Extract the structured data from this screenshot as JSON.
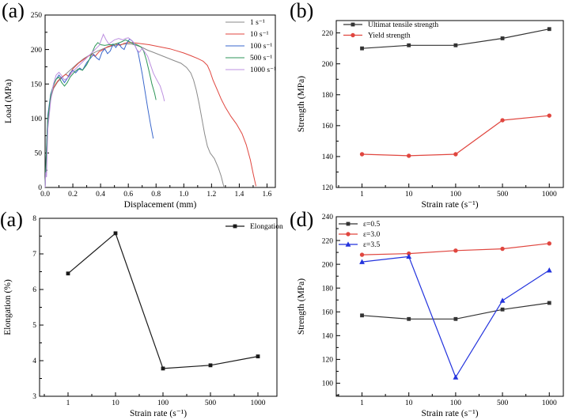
{
  "figure_background": "#ffffff",
  "panels": [
    {
      "label": "(a)"
    },
    {
      "label": "(b)"
    },
    {
      "label": "(a)"
    },
    {
      "label": "(d)"
    }
  ],
  "chart_data": [
    {
      "type": "line",
      "title": "",
      "xlabel": "Displacement  (mm)",
      "ylabel": "Load (MPa)",
      "xlim": [
        0,
        1.66
      ],
      "ylim": [
        0,
        250
      ],
      "xticks": [
        0.0,
        0.2,
        0.4,
        0.6,
        0.8,
        1.0,
        1.2,
        1.4,
        1.6
      ],
      "xticklabels": [
        "0.0",
        "0.2",
        "0.4",
        "0.6",
        "0.8",
        "1.0",
        "1.2",
        "1.4",
        "1.6"
      ],
      "yticks": [
        0,
        50,
        100,
        150,
        200,
        250
      ],
      "yticklabels": [
        "0",
        "50",
        "100",
        "150",
        "200",
        "250"
      ],
      "grid": false,
      "legend": {
        "pos": "tr",
        "ox": 63,
        "oy": 9,
        "dy": 15
      },
      "size": [
        364,
        266
      ],
      "margins": [
        57,
        19,
        16,
        29
      ],
      "ylx": 14,
      "lw": 1.0,
      "series": [
        {
          "name": "1 s⁻¹",
          "color": "#8a8a8a",
          "marker": null,
          "points": [
            [
              0,
              0
            ],
            [
              0.01,
              50
            ],
            [
              0.02,
              95
            ],
            [
              0.04,
              128
            ],
            [
              0.06,
              143
            ],
            [
              0.09,
              153
            ],
            [
              0.13,
              161
            ],
            [
              0.18,
              170
            ],
            [
              0.23,
              179
            ],
            [
              0.28,
              187
            ],
            [
              0.33,
              193
            ],
            [
              0.38,
              198
            ],
            [
              0.43,
              202
            ],
            [
              0.48,
              205
            ],
            [
              0.53,
              207
            ],
            [
              0.58,
              208
            ],
            [
              0.62,
              208
            ],
            [
              0.66,
              206
            ],
            [
              0.7,
              203
            ],
            [
              0.74,
              199
            ],
            [
              0.78,
              196
            ],
            [
              0.83,
              192
            ],
            [
              0.88,
              188
            ],
            [
              0.93,
              184
            ],
            [
              0.98,
              180
            ],
            [
              1.02,
              174
            ],
            [
              1.05,
              166
            ],
            [
              1.07,
              156
            ],
            [
              1.09,
              141
            ],
            [
              1.11,
              122
            ],
            [
              1.13,
              100
            ],
            [
              1.15,
              78
            ],
            [
              1.17,
              60
            ],
            [
              1.19,
              50
            ],
            [
              1.22,
              42
            ],
            [
              1.25,
              28
            ],
            [
              1.27,
              16
            ],
            [
              1.29,
              0
            ]
          ]
        },
        {
          "name": "10 s⁻¹",
          "color": "#e0463f",
          "marker": null,
          "points": [
            [
              0,
              0
            ],
            [
              0.01,
              55
            ],
            [
              0.02,
              100
            ],
            [
              0.04,
              130
            ],
            [
              0.06,
              145
            ],
            [
              0.09,
              154
            ],
            [
              0.12,
              160
            ],
            [
              0.15,
              164
            ],
            [
              0.17,
              161
            ],
            [
              0.2,
              172
            ],
            [
              0.24,
              180
            ],
            [
              0.28,
              186
            ],
            [
              0.31,
              190
            ],
            [
              0.34,
              193
            ],
            [
              0.36,
              190
            ],
            [
              0.39,
              197
            ],
            [
              0.42,
              200
            ],
            [
              0.45,
              204
            ],
            [
              0.48,
              206
            ],
            [
              0.51,
              208
            ],
            [
              0.54,
              206
            ],
            [
              0.57,
              209
            ],
            [
              0.6,
              210
            ],
            [
              0.63,
              210
            ],
            [
              0.67,
              209
            ],
            [
              0.71,
              208
            ],
            [
              0.75,
              207
            ],
            [
              0.8,
              205
            ],
            [
              0.85,
              203
            ],
            [
              0.9,
              201
            ],
            [
              0.95,
              198
            ],
            [
              1.0,
              195
            ],
            [
              1.05,
              191
            ],
            [
              1.1,
              187
            ],
            [
              1.14,
              183
            ],
            [
              1.17,
              177
            ],
            [
              1.19,
              168
            ],
            [
              1.21,
              156
            ],
            [
              1.24,
              142
            ],
            [
              1.27,
              128
            ],
            [
              1.3,
              116
            ],
            [
              1.34,
              103
            ],
            [
              1.38,
              92
            ],
            [
              1.42,
              78
            ],
            [
              1.45,
              62
            ],
            [
              1.48,
              40
            ],
            [
              1.5,
              20
            ],
            [
              1.52,
              2
            ]
          ]
        },
        {
          "name": "100 s⁻¹",
          "color": "#3a67cc",
          "marker": null,
          "points": [
            [
              0,
              0
            ],
            [
              0.01,
              60
            ],
            [
              0.02,
              105
            ],
            [
              0.04,
              135
            ],
            [
              0.06,
              148
            ],
            [
              0.08,
              157
            ],
            [
              0.1,
              163
            ],
            [
              0.12,
              158
            ],
            [
              0.14,
              152
            ],
            [
              0.16,
              158
            ],
            [
              0.18,
              166
            ],
            [
              0.2,
              170
            ],
            [
              0.22,
              166
            ],
            [
              0.25,
              173
            ],
            [
              0.27,
              170
            ],
            [
              0.3,
              181
            ],
            [
              0.33,
              188
            ],
            [
              0.35,
              193
            ],
            [
              0.37,
              188
            ],
            [
              0.39,
              185
            ],
            [
              0.41,
              196
            ],
            [
              0.43,
              201
            ],
            [
              0.45,
              194
            ],
            [
              0.47,
              198
            ],
            [
              0.49,
              208
            ],
            [
              0.51,
              203
            ],
            [
              0.53,
              209
            ],
            [
              0.55,
              203
            ],
            [
              0.57,
              200
            ],
            [
              0.59,
              210
            ],
            [
              0.61,
              215
            ],
            [
              0.63,
              212
            ],
            [
              0.65,
              205
            ],
            [
              0.67,
              196
            ],
            [
              0.68,
              186
            ],
            [
              0.7,
              165
            ],
            [
              0.72,
              140
            ],
            [
              0.74,
              115
            ],
            [
              0.76,
              92
            ],
            [
              0.78,
              71
            ]
          ]
        },
        {
          "name": "500 s⁻¹",
          "color": "#2e9658",
          "marker": null,
          "points": [
            [
              0,
              0
            ],
            [
              0.01,
              55
            ],
            [
              0.02,
              100
            ],
            [
              0.04,
              133
            ],
            [
              0.06,
              148
            ],
            [
              0.08,
              157
            ],
            [
              0.1,
              160
            ],
            [
              0.12,
              152
            ],
            [
              0.14,
              147
            ],
            [
              0.16,
              152
            ],
            [
              0.18,
              160
            ],
            [
              0.21,
              167
            ],
            [
              0.24,
              172
            ],
            [
              0.27,
              170
            ],
            [
              0.3,
              178
            ],
            [
              0.32,
              186
            ],
            [
              0.34,
              196
            ],
            [
              0.36,
              205
            ],
            [
              0.38,
              210
            ],
            [
              0.4,
              207
            ],
            [
              0.43,
              206
            ],
            [
              0.46,
              207
            ],
            [
              0.49,
              207
            ],
            [
              0.52,
              209
            ],
            [
              0.55,
              211
            ],
            [
              0.58,
              214
            ],
            [
              0.6,
              212
            ],
            [
              0.63,
              209
            ],
            [
              0.66,
              207
            ],
            [
              0.69,
              204
            ],
            [
              0.71,
              198
            ],
            [
              0.73,
              185
            ],
            [
              0.75,
              168
            ],
            [
              0.77,
              150
            ],
            [
              0.79,
              136
            ],
            [
              0.8,
              127
            ]
          ]
        },
        {
          "name": "1000 s⁻¹",
          "color": "#bd90e0",
          "marker": null,
          "points": [
            [
              0,
              0
            ],
            [
              0.005,
              22
            ],
            [
              0.01,
              15
            ],
            [
              0.02,
              85
            ],
            [
              0.04,
              125
            ],
            [
              0.06,
              150
            ],
            [
              0.08,
              163
            ],
            [
              0.1,
              167
            ],
            [
              0.12,
              162
            ],
            [
              0.14,
              156
            ],
            [
              0.17,
              160
            ],
            [
              0.2,
              168
            ],
            [
              0.24,
              176
            ],
            [
              0.28,
              184
            ],
            [
              0.32,
              192
            ],
            [
              0.36,
              200
            ],
            [
              0.39,
              206
            ],
            [
              0.42,
              222
            ],
            [
              0.44,
              214
            ],
            [
              0.46,
              208
            ],
            [
              0.48,
              211
            ],
            [
              0.5,
              214
            ],
            [
              0.53,
              216
            ],
            [
              0.56,
              214
            ],
            [
              0.58,
              216
            ],
            [
              0.6,
              217
            ],
            [
              0.62,
              214
            ],
            [
              0.64,
              210
            ],
            [
              0.66,
              200
            ],
            [
              0.68,
              196
            ],
            [
              0.7,
              202
            ],
            [
              0.72,
              196
            ],
            [
              0.74,
              190
            ],
            [
              0.76,
              178
            ],
            [
              0.78,
              166
            ],
            [
              0.8,
              158
            ],
            [
              0.83,
              147
            ],
            [
              0.85,
              134
            ],
            [
              0.86,
              125
            ]
          ]
        }
      ]
    },
    {
      "type": "line",
      "title": "",
      "xlabel": "Strain rate  (s⁻¹)",
      "ylabel": "Strength  (MPa)",
      "categories": [
        "1",
        "10",
        "100",
        "500",
        "1000"
      ],
      "xlim": [
        -0.55,
        4.3
      ],
      "ylim": [
        120,
        228
      ],
      "yticks": [
        120,
        140,
        160,
        180,
        200,
        220
      ],
      "yticklabels": [
        "120",
        "140",
        "160",
        "180",
        "200",
        "220"
      ],
      "grid": false,
      "legend": {
        "pos": "tl",
        "ox": 9,
        "oy": 5,
        "dy": 13.5
      },
      "size": [
        364,
        266
      ],
      "margins": [
        61,
        26,
        16,
        29
      ],
      "ylx": 20,
      "lw": 1.2,
      "series": [
        {
          "name": "Ultimat tensile strength",
          "color": "#333333",
          "marker": "square",
          "values": [
            210,
            212,
            212,
            216.5,
            222.5
          ]
        },
        {
          "name": "Yield strength",
          "color": "#e0463f",
          "marker": "circle",
          "values": [
            141.5,
            140.5,
            141.5,
            163.5,
            166.5
          ]
        }
      ]
    },
    {
      "type": "line",
      "title": "",
      "xlabel": "Strain rate  (s⁻¹)",
      "ylabel": "Elongation  (%)",
      "categories": [
        "1",
        "10",
        "100",
        "500",
        "1000"
      ],
      "xlim": [
        -0.6,
        4.4
      ],
      "ylim": [
        3,
        8
      ],
      "yticks": [
        3,
        4,
        5,
        6,
        7,
        8
      ],
      "yticklabels": [
        "3",
        "4",
        "5",
        "6",
        "7",
        "8"
      ],
      "grid": false,
      "legend": {
        "pos": "tr",
        "ox": 65,
        "oy": 10,
        "dy": 14
      },
      "size": [
        364,
        265
      ],
      "margins": [
        50,
        10,
        14,
        30
      ],
      "ylx": 13,
      "lw": 1.2,
      "series": [
        {
          "name": "Elongation",
          "color": "#1a1a1a",
          "marker": "square",
          "values": [
            6.45,
            7.58,
            3.78,
            3.87,
            4.12
          ]
        }
      ]
    },
    {
      "type": "line",
      "title": "",
      "xlabel": "Strain rate  (s⁻¹)",
      "ylabel": "Strength  (MPa)",
      "categories": [
        "1",
        "10",
        "100",
        "500",
        "1000"
      ],
      "xlim": [
        -0.55,
        4.3
      ],
      "ylim": [
        89,
        240
      ],
      "yticks": [
        100,
        120,
        140,
        160,
        180,
        200,
        220,
        240
      ],
      "yticklabels": [
        "100",
        "120",
        "140",
        "160",
        "180",
        "200",
        "220",
        "240"
      ],
      "grid": false,
      "legend": {
        "pos": "tl",
        "ox": 3,
        "oy": 9,
        "dy": 13
      },
      "size": [
        364,
        265
      ],
      "margins": [
        61,
        8,
        16,
        30
      ],
      "ylx": 20,
      "lw": 1.2,
      "series": [
        {
          "name": "ε=0.5",
          "color": "#333333",
          "marker": "square",
          "values": [
            157,
            154,
            154,
            162,
            167.5
          ]
        },
        {
          "name": "ε=3.0",
          "color": "#e0463f",
          "marker": "circle",
          "values": [
            208,
            209,
            211.5,
            213,
            217.5
          ]
        },
        {
          "name": "ε=3.5",
          "color": "#2333dd",
          "marker": "triangle",
          "values": [
            202,
            206.5,
            105,
            169.5,
            195
          ]
        }
      ]
    }
  ]
}
